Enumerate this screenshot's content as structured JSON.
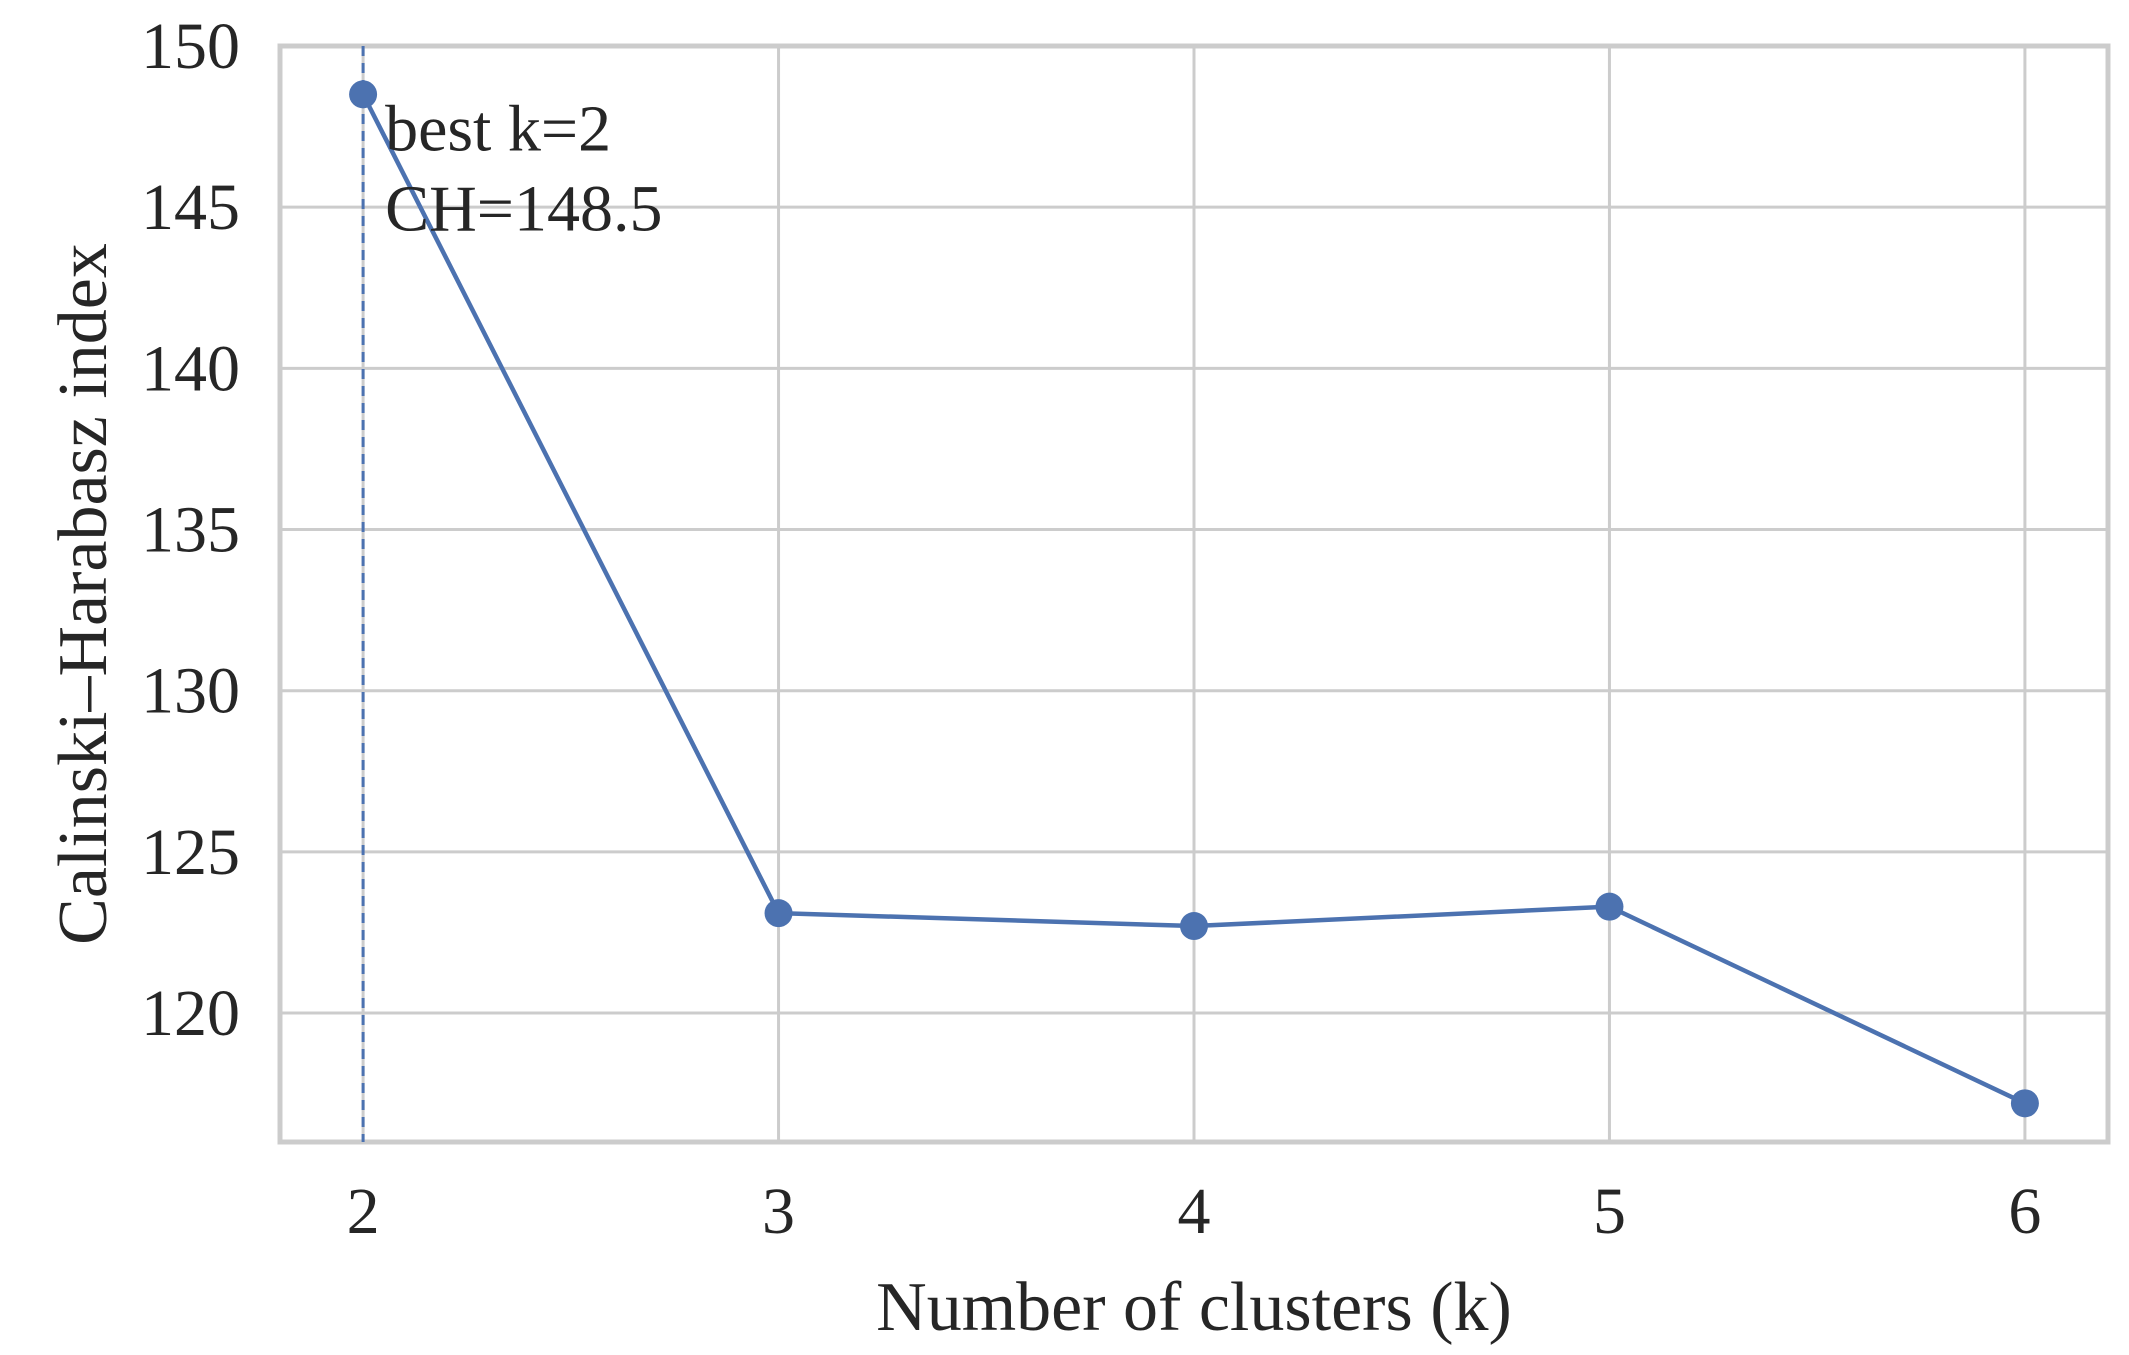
{
  "chart_data": {
    "type": "line",
    "xlabel": "Number of clusters (k)",
    "ylabel": "Calinski–Harabasz index",
    "x": [
      2,
      3,
      4,
      5,
      6
    ],
    "values": [
      148.5,
      123.1,
      122.7,
      123.3,
      117.2
    ],
    "xlim": [
      1.8,
      6.2
    ],
    "ylim": [
      116.0,
      150.0
    ],
    "xticks": [
      "2",
      "3",
      "4",
      "5",
      "6"
    ],
    "yticks": [
      "120",
      "125",
      "130",
      "135",
      "140",
      "145",
      "150"
    ],
    "ytick_values": [
      120,
      125,
      130,
      135,
      140,
      145,
      150
    ],
    "grid": true,
    "best_k_marker": 2,
    "annotation": [
      "best k=2",
      "CH=148.5"
    ],
    "colors": {
      "series": "#4c72b0",
      "grid": "#cccccc",
      "text": "#262626"
    }
  }
}
